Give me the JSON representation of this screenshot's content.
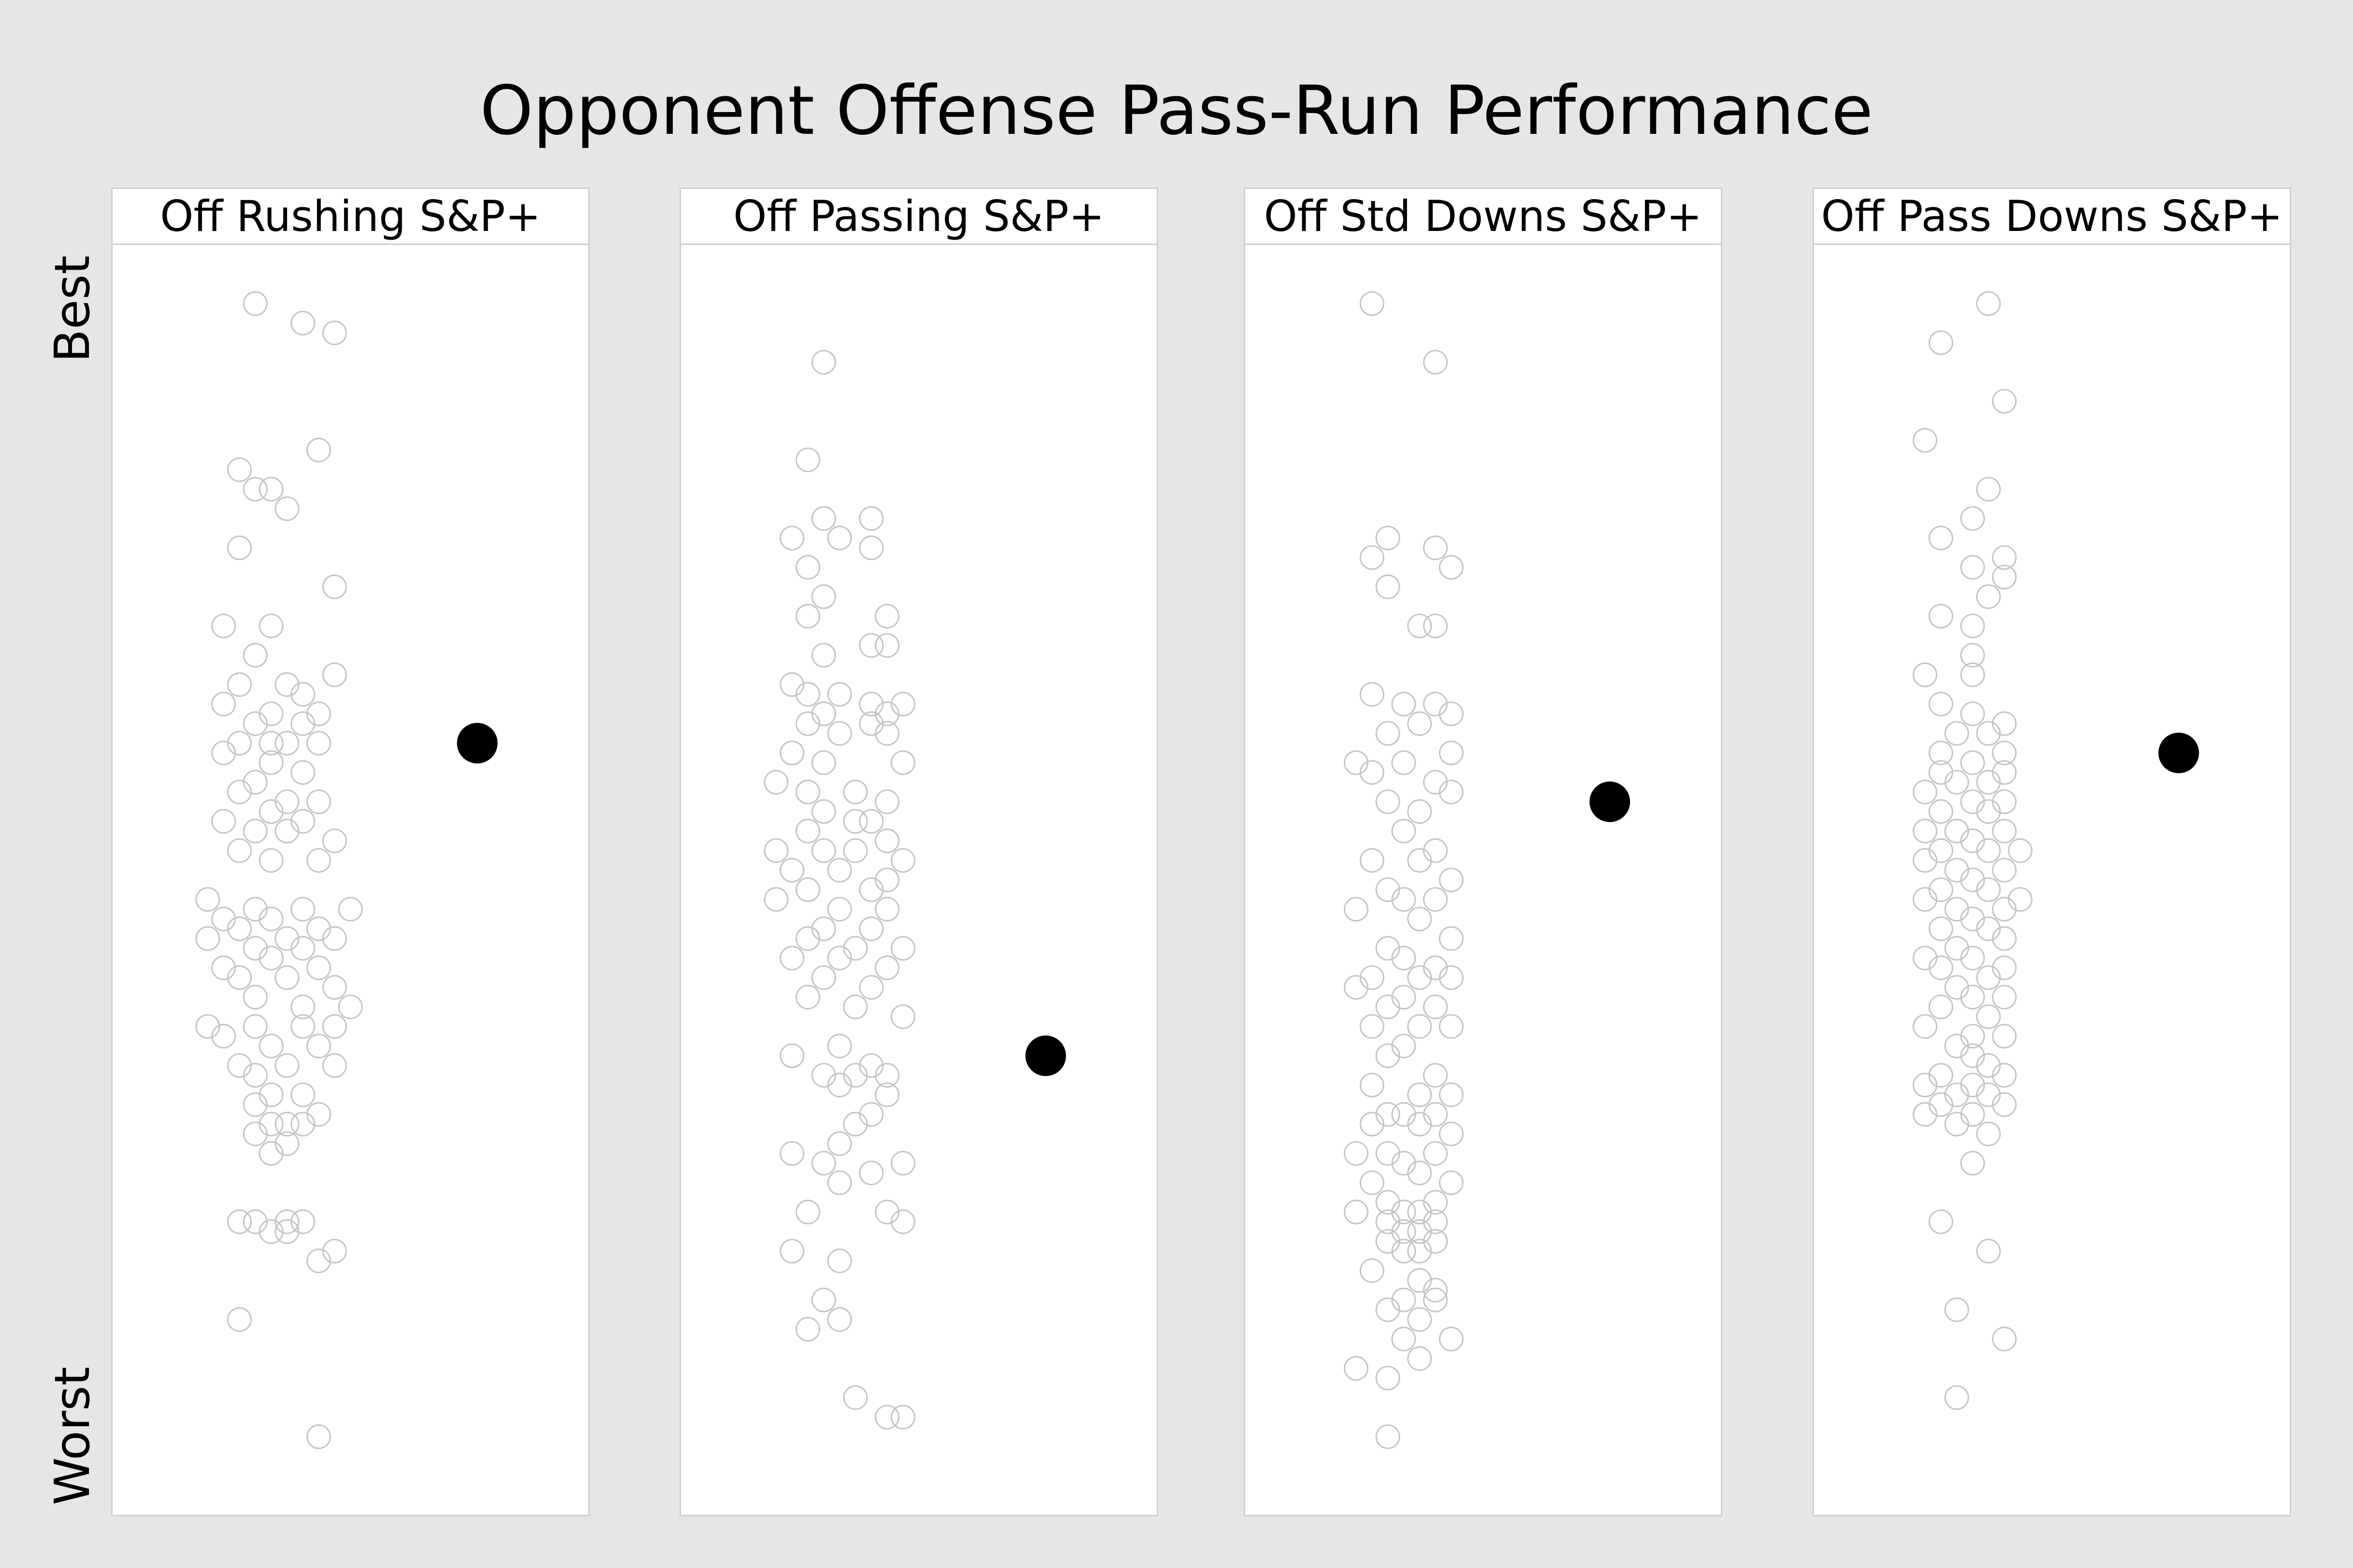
{
  "title": "Opponent Offense Pass-Run Performance",
  "y_axis": {
    "top_label": "Best",
    "bottom_label": "Worst"
  },
  "chart_data": [
    {
      "type": "scatter",
      "title": "Off Rushing S&P+",
      "y_scale": "rank (1 = best)",
      "ylim": [
        0,
        130
      ],
      "highlight": {
        "x": 2.3,
        "y": 51
      },
      "points": [
        [
          0.9,
          6
        ],
        [
          1.2,
          8
        ],
        [
          1.4,
          9
        ],
        [
          1.3,
          21
        ],
        [
          0.8,
          23
        ],
        [
          0.9,
          25
        ],
        [
          1.0,
          25
        ],
        [
          1.1,
          27
        ],
        [
          0.8,
          31
        ],
        [
          1.4,
          35
        ],
        [
          0.7,
          39
        ],
        [
          1.0,
          39
        ],
        [
          0.9,
          42
        ],
        [
          1.4,
          44
        ],
        [
          0.8,
          45
        ],
        [
          1.1,
          45
        ],
        [
          1.2,
          46
        ],
        [
          0.7,
          47
        ],
        [
          1.0,
          48
        ],
        [
          1.3,
          48
        ],
        [
          0.9,
          49
        ],
        [
          1.2,
          49
        ],
        [
          0.8,
          51
        ],
        [
          1.1,
          51
        ],
        [
          1.0,
          51
        ],
        [
          1.3,
          51
        ],
        [
          0.7,
          52
        ],
        [
          1.0,
          53
        ],
        [
          1.2,
          54
        ],
        [
          0.9,
          55
        ],
        [
          0.8,
          56
        ],
        [
          1.1,
          57
        ],
        [
          1.3,
          57
        ],
        [
          1.0,
          58
        ],
        [
          0.7,
          59
        ],
        [
          1.2,
          59
        ],
        [
          0.9,
          60
        ],
        [
          1.1,
          60
        ],
        [
          1.4,
          61
        ],
        [
          0.8,
          62
        ],
        [
          1.0,
          63
        ],
        [
          1.3,
          63
        ],
        [
          0.6,
          67
        ],
        [
          0.9,
          68
        ],
        [
          1.2,
          68
        ],
        [
          1.5,
          68
        ],
        [
          0.7,
          69
        ],
        [
          1.0,
          69
        ],
        [
          1.3,
          70
        ],
        [
          0.8,
          70
        ],
        [
          1.1,
          71
        ],
        [
          1.4,
          71
        ],
        [
          0.6,
          71
        ],
        [
          0.9,
          72
        ],
        [
          1.2,
          72
        ],
        [
          1.0,
          73
        ],
        [
          0.7,
          74
        ],
        [
          1.3,
          74
        ],
        [
          1.1,
          75
        ],
        [
          0.8,
          75
        ],
        [
          1.4,
          76
        ],
        [
          0.9,
          77
        ],
        [
          1.2,
          78
        ],
        [
          1.5,
          78
        ],
        [
          0.6,
          80
        ],
        [
          0.9,
          80
        ],
        [
          1.2,
          80
        ],
        [
          1.4,
          80
        ],
        [
          0.7,
          81
        ],
        [
          1.0,
          82
        ],
        [
          1.3,
          82
        ],
        [
          0.8,
          84
        ],
        [
          1.1,
          84
        ],
        [
          1.4,
          84
        ],
        [
          0.9,
          85
        ],
        [
          1.0,
          87
        ],
        [
          1.2,
          87
        ],
        [
          0.9,
          88
        ],
        [
          1.3,
          89
        ],
        [
          1.1,
          90
        ],
        [
          1.0,
          90
        ],
        [
          1.2,
          90
        ],
        [
          0.9,
          91
        ],
        [
          1.1,
          92
        ],
        [
          1.0,
          93
        ],
        [
          0.8,
          100
        ],
        [
          0.9,
          100
        ],
        [
          1.1,
          100
        ],
        [
          1.2,
          100
        ],
        [
          1.0,
          101
        ],
        [
          1.1,
          101
        ],
        [
          1.4,
          103
        ],
        [
          1.3,
          104
        ],
        [
          0.8,
          110
        ],
        [
          1.3,
          122
        ]
      ]
    },
    {
      "type": "scatter",
      "title": "Off Passing S&P+",
      "y_scale": "rank (1 = best)",
      "ylim": [
        0,
        130
      ],
      "highlight": {
        "x": 2.3,
        "y": 83
      },
      "points": [
        [
          0.9,
          12
        ],
        [
          0.8,
          22
        ],
        [
          0.9,
          28
        ],
        [
          1.2,
          28
        ],
        [
          0.7,
          30
        ],
        [
          1.0,
          30
        ],
        [
          1.2,
          31
        ],
        [
          0.8,
          33
        ],
        [
          0.9,
          36
        ],
        [
          0.8,
          38
        ],
        [
          1.3,
          38
        ],
        [
          1.2,
          41
        ],
        [
          0.9,
          42
        ],
        [
          1.3,
          41
        ],
        [
          0.7,
          45
        ],
        [
          0.8,
          46
        ],
        [
          1.0,
          46
        ],
        [
          1.2,
          47
        ],
        [
          1.4,
          47
        ],
        [
          0.9,
          48
        ],
        [
          1.3,
          48
        ],
        [
          0.8,
          49
        ],
        [
          1.2,
          49
        ],
        [
          1.0,
          50
        ],
        [
          1.3,
          50
        ],
        [
          0.7,
          52
        ],
        [
          0.9,
          53
        ],
        [
          1.4,
          53
        ],
        [
          0.6,
          55
        ],
        [
          0.8,
          56
        ],
        [
          1.1,
          56
        ],
        [
          1.3,
          57
        ],
        [
          0.9,
          58
        ],
        [
          1.1,
          59
        ],
        [
          1.2,
          59
        ],
        [
          0.8,
          60
        ],
        [
          1.3,
          61
        ],
        [
          0.6,
          62
        ],
        [
          0.9,
          62
        ],
        [
          1.1,
          62
        ],
        [
          1.4,
          63
        ],
        [
          0.7,
          64
        ],
        [
          1.0,
          64
        ],
        [
          1.3,
          65
        ],
        [
          0.8,
          66
        ],
        [
          1.2,
          66
        ],
        [
          0.6,
          67
        ],
        [
          1.0,
          68
        ],
        [
          1.3,
          68
        ],
        [
          0.9,
          70
        ],
        [
          1.2,
          70
        ],
        [
          0.8,
          71
        ],
        [
          1.1,
          72
        ],
        [
          1.4,
          72
        ],
        [
          0.7,
          73
        ],
        [
          1.0,
          73
        ],
        [
          1.3,
          74
        ],
        [
          0.9,
          75
        ],
        [
          1.2,
          76
        ],
        [
          0.8,
          77
        ],
        [
          1.1,
          78
        ],
        [
          1.4,
          79
        ],
        [
          1.0,
          82
        ],
        [
          0.7,
          83
        ],
        [
          1.2,
          84
        ],
        [
          1.3,
          85
        ],
        [
          0.9,
          85
        ],
        [
          1.1,
          85
        ],
        [
          1.0,
          86
        ],
        [
          1.3,
          87
        ],
        [
          1.2,
          89
        ],
        [
          1.1,
          90
        ],
        [
          1.0,
          92
        ],
        [
          0.7,
          93
        ],
        [
          0.9,
          94
        ],
        [
          1.4,
          94
        ],
        [
          1.2,
          95
        ],
        [
          1.0,
          96
        ],
        [
          0.8,
          99
        ],
        [
          1.3,
          99
        ],
        [
          1.4,
          100
        ],
        [
          0.7,
          103
        ],
        [
          1.0,
          104
        ],
        [
          0.9,
          108
        ],
        [
          1.0,
          110
        ],
        [
          0.8,
          111
        ],
        [
          1.1,
          118
        ],
        [
          1.3,
          120
        ],
        [
          1.4,
          120
        ]
      ]
    },
    {
      "type": "scatter",
      "title": "Off Std Downs S&P+",
      "y_scale": "rank (1 = best)",
      "ylim": [
        0,
        130
      ],
      "highlight": {
        "x": 2.3,
        "y": 57
      },
      "points": [
        [
          0.8,
          6
        ],
        [
          1.2,
          12
        ],
        [
          0.9,
          30
        ],
        [
          1.2,
          31
        ],
        [
          0.8,
          32
        ],
        [
          1.3,
          33
        ],
        [
          0.9,
          35
        ],
        [
          1.1,
          39
        ],
        [
          1.2,
          39
        ],
        [
          0.8,
          46
        ],
        [
          1.0,
          47
        ],
        [
          1.2,
          47
        ],
        [
          1.3,
          48
        ],
        [
          1.1,
          49
        ],
        [
          0.9,
          50
        ],
        [
          1.3,
          52
        ],
        [
          0.7,
          53
        ],
        [
          1.0,
          53
        ],
        [
          0.8,
          54
        ],
        [
          1.2,
          55
        ],
        [
          1.3,
          56
        ],
        [
          0.9,
          57
        ],
        [
          1.1,
          58
        ],
        [
          1.0,
          60
        ],
        [
          1.2,
          62
        ],
        [
          0.8,
          63
        ],
        [
          1.1,
          63
        ],
        [
          1.3,
          65
        ],
        [
          0.9,
          66
        ],
        [
          1.0,
          67
        ],
        [
          1.2,
          67
        ],
        [
          0.7,
          68
        ],
        [
          1.1,
          69
        ],
        [
          1.3,
          71
        ],
        [
          0.9,
          72
        ],
        [
          1.0,
          73
        ],
        [
          1.2,
          74
        ],
        [
          0.8,
          75
        ],
        [
          1.1,
          75
        ],
        [
          1.3,
          75
        ],
        [
          0.7,
          76
        ],
        [
          1.0,
          77
        ],
        [
          1.2,
          78
        ],
        [
          0.9,
          78
        ],
        [
          0.8,
          80
        ],
        [
          1.1,
          80
        ],
        [
          1.3,
          80
        ],
        [
          1.0,
          82
        ],
        [
          0.9,
          83
        ],
        [
          1.2,
          85
        ],
        [
          0.8,
          86
        ],
        [
          1.1,
          87
        ],
        [
          1.3,
          87
        ],
        [
          0.9,
          89
        ],
        [
          1.0,
          89
        ],
        [
          1.2,
          89
        ],
        [
          0.8,
          90
        ],
        [
          1.1,
          90
        ],
        [
          1.3,
          91
        ],
        [
          0.9,
          93
        ],
        [
          0.7,
          93
        ],
        [
          1.2,
          93
        ],
        [
          1.0,
          94
        ],
        [
          1.1,
          95
        ],
        [
          0.8,
          96
        ],
        [
          1.3,
          96
        ],
        [
          0.9,
          98
        ],
        [
          1.2,
          98
        ],
        [
          1.0,
          99
        ],
        [
          1.1,
          99
        ],
        [
          0.7,
          99
        ],
        [
          0.9,
          100
        ],
        [
          1.2,
          100
        ],
        [
          1.0,
          101
        ],
        [
          1.1,
          101
        ],
        [
          0.9,
          102
        ],
        [
          1.2,
          102
        ],
        [
          1.0,
          103
        ],
        [
          1.1,
          103
        ],
        [
          0.8,
          105
        ],
        [
          1.1,
          106
        ],
        [
          1.0,
          108
        ],
        [
          1.2,
          108
        ],
        [
          0.9,
          109
        ],
        [
          1.1,
          110
        ],
        [
          1.0,
          112
        ],
        [
          1.3,
          112
        ],
        [
          0.9,
          116
        ],
        [
          0.7,
          115
        ],
        [
          1.1,
          114
        ],
        [
          1.2,
          107
        ],
        [
          0.9,
          122
        ]
      ]
    },
    {
      "type": "scatter",
      "title": "Off Pass Downs S&P+",
      "y_scale": "rank (1 = best)",
      "ylim": [
        0,
        130
      ],
      "highlight": {
        "x": 2.3,
        "y": 52
      },
      "points": [
        [
          1.1,
          6
        ],
        [
          0.8,
          10
        ],
        [
          1.2,
          16
        ],
        [
          0.7,
          20
        ],
        [
          1.1,
          25
        ],
        [
          1.0,
          28
        ],
        [
          0.8,
          30
        ],
        [
          1.2,
          32
        ],
        [
          1.0,
          33
        ],
        [
          1.2,
          34
        ],
        [
          1.1,
          36
        ],
        [
          0.8,
          38
        ],
        [
          1.0,
          39
        ],
        [
          1.0,
          42
        ],
        [
          0.7,
          44
        ],
        [
          1.0,
          44
        ],
        [
          0.8,
          47
        ],
        [
          1.0,
          48
        ],
        [
          1.2,
          49
        ],
        [
          0.9,
          50
        ],
        [
          1.1,
          50
        ],
        [
          0.8,
          52
        ],
        [
          1.2,
          52
        ],
        [
          1.0,
          53
        ],
        [
          0.8,
          54
        ],
        [
          1.2,
          54
        ],
        [
          0.9,
          55
        ],
        [
          1.1,
          55
        ],
        [
          0.7,
          56
        ],
        [
          1.0,
          57
        ],
        [
          1.2,
          57
        ],
        [
          0.8,
          58
        ],
        [
          1.1,
          58
        ],
        [
          0.7,
          60
        ],
        [
          0.9,
          60
        ],
        [
          1.2,
          60
        ],
        [
          1.0,
          61
        ],
        [
          0.8,
          62
        ],
        [
          1.1,
          62
        ],
        [
          1.3,
          62
        ],
        [
          0.7,
          63
        ],
        [
          0.9,
          64
        ],
        [
          1.2,
          64
        ],
        [
          1.0,
          65
        ],
        [
          0.8,
          66
        ],
        [
          1.1,
          66
        ],
        [
          1.3,
          67
        ],
        [
          0.7,
          67
        ],
        [
          0.9,
          68
        ],
        [
          1.2,
          68
        ],
        [
          1.0,
          69
        ],
        [
          0.8,
          70
        ],
        [
          1.1,
          70
        ],
        [
          1.2,
          71
        ],
        [
          0.9,
          72
        ],
        [
          0.7,
          73
        ],
        [
          1.0,
          73
        ],
        [
          1.2,
          74
        ],
        [
          0.8,
          74
        ],
        [
          1.1,
          75
        ],
        [
          0.9,
          76
        ],
        [
          1.0,
          77
        ],
        [
          1.2,
          77
        ],
        [
          0.8,
          78
        ],
        [
          1.1,
          79
        ],
        [
          0.7,
          80
        ],
        [
          1.0,
          81
        ],
        [
          1.2,
          81
        ],
        [
          0.9,
          82
        ],
        [
          1.0,
          83
        ],
        [
          1.1,
          84
        ],
        [
          0.8,
          85
        ],
        [
          1.2,
          85
        ],
        [
          0.7,
          86
        ],
        [
          1.0,
          86
        ],
        [
          0.9,
          87
        ],
        [
          1.1,
          87
        ],
        [
          0.8,
          88
        ],
        [
          1.2,
          88
        ],
        [
          0.7,
          89
        ],
        [
          1.0,
          89
        ],
        [
          0.9,
          90
        ],
        [
          1.1,
          91
        ],
        [
          1.0,
          94
        ],
        [
          0.8,
          100
        ],
        [
          1.1,
          103
        ],
        [
          0.9,
          109
        ],
        [
          1.2,
          112
        ],
        [
          0.9,
          118
        ]
      ]
    }
  ]
}
